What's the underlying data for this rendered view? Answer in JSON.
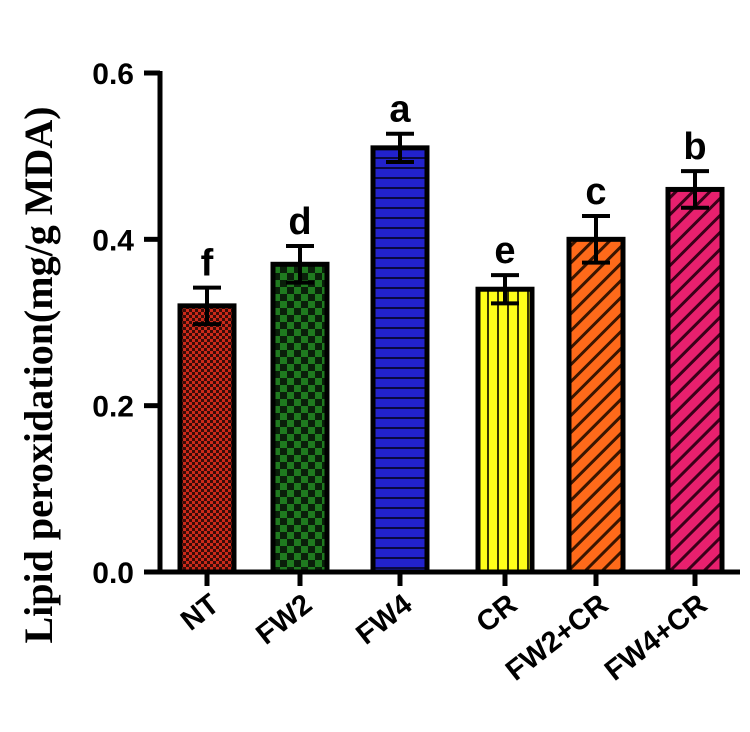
{
  "chart_data": {
    "type": "bar",
    "title": "",
    "xlabel": "",
    "ylabel": "Lipid peroxidation(mg/g MDA)",
    "ylim": [
      0,
      0.6
    ],
    "yticks": [
      "0.0",
      "0.2",
      "0.4",
      "0.6"
    ],
    "categories": [
      "NT",
      "FW2",
      "FW4",
      "CR",
      "FW2+CR",
      "FW4+CR"
    ],
    "values": [
      0.32,
      0.37,
      0.51,
      0.34,
      0.4,
      0.46
    ],
    "errors": [
      0.022,
      0.022,
      0.017,
      0.017,
      0.028,
      0.022
    ],
    "significance": [
      "f",
      "d",
      "a",
      "e",
      "c",
      "b"
    ],
    "colors": [
      "#cc2a1a",
      "#1f7a1f",
      "#2222cc",
      "#ffff1a",
      "#ff6a1a",
      "#e8206e"
    ],
    "patterns": [
      "fine-check",
      "check",
      "horizontal",
      "vertical",
      "diagonal",
      "diagonal"
    ]
  }
}
